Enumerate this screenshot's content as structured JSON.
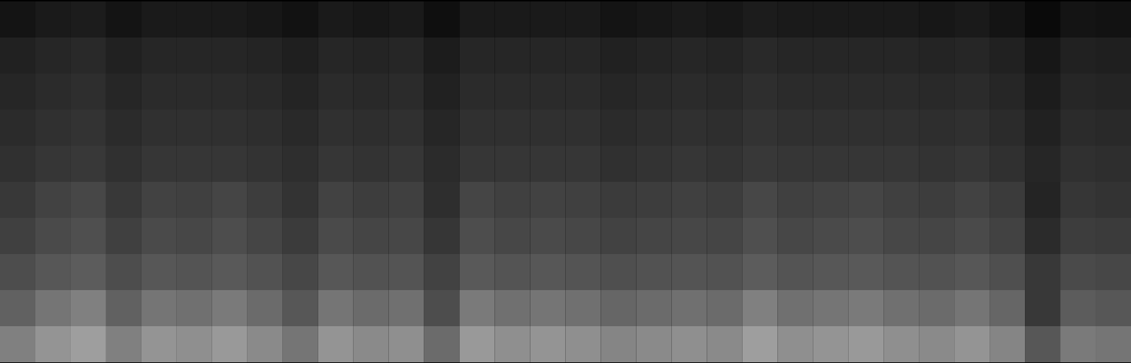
{
  "chart_data": {
    "type": "heatmap",
    "tick_labels": false,
    "clim": [
      0,
      100
    ],
    "cells": [
      [
        8,
        10,
        11,
        8,
        10,
        10,
        10,
        9,
        7,
        10,
        9,
        10,
        6,
        10,
        10,
        10,
        10,
        8,
        9,
        10,
        9,
        11,
        10,
        10,
        10,
        10,
        9,
        10,
        8,
        4,
        8,
        7
      ],
      [
        13,
        15,
        16,
        13,
        15,
        15,
        15,
        14,
        12,
        15,
        14,
        15,
        11,
        15,
        15,
        15,
        15,
        13,
        14,
        15,
        14,
        16,
        15,
        15,
        15,
        15,
        14,
        15,
        13,
        9,
        13,
        12
      ],
      [
        15,
        17,
        18,
        15,
        17,
        17,
        17,
        16,
        14,
        17,
        16,
        17,
        13,
        17,
        17,
        17,
        17,
        15,
        16,
        17,
        16,
        18,
        17,
        17,
        17,
        17,
        16,
        17,
        15,
        11,
        15,
        14
      ],
      [
        17,
        19,
        20,
        17,
        19,
        19,
        19,
        18,
        16,
        19,
        18,
        19,
        15,
        19,
        19,
        19,
        19,
        17,
        18,
        19,
        18,
        20,
        19,
        19,
        19,
        19,
        18,
        19,
        17,
        13,
        17,
        16
      ],
      [
        19,
        21,
        22,
        19,
        21,
        21,
        21,
        20,
        18,
        21,
        20,
        21,
        17,
        21,
        21,
        21,
        21,
        19,
        20,
        21,
        20,
        22,
        21,
        21,
        21,
        21,
        20,
        21,
        19,
        15,
        19,
        18
      ],
      [
        22,
        26,
        28,
        22,
        26,
        25,
        27,
        24,
        20,
        26,
        24,
        25,
        18,
        27,
        25,
        26,
        25,
        23,
        24,
        25,
        24,
        28,
        25,
        26,
        27,
        25,
        24,
        26,
        23,
        14,
        21,
        20
      ],
      [
        25,
        29,
        31,
        25,
        29,
        28,
        30,
        27,
        23,
        29,
        27,
        28,
        21,
        30,
        28,
        29,
        28,
        26,
        27,
        28,
        27,
        31,
        28,
        29,
        30,
        28,
        27,
        29,
        26,
        17,
        24,
        23
      ],
      [
        30,
        34,
        36,
        30,
        34,
        33,
        35,
        32,
        28,
        34,
        32,
        33,
        26,
        35,
        33,
        34,
        33,
        31,
        32,
        33,
        32,
        36,
        33,
        34,
        35,
        33,
        32,
        34,
        31,
        22,
        29,
        28
      ],
      [
        38,
        46,
        50,
        38,
        46,
        44,
        48,
        42,
        34,
        46,
        42,
        44,
        30,
        48,
        44,
        46,
        44,
        40,
        42,
        44,
        42,
        50,
        44,
        46,
        48,
        44,
        42,
        46,
        40,
        22,
        36,
        34
      ],
      [
        50,
        58,
        62,
        50,
        58,
        56,
        60,
        54,
        46,
        58,
        54,
        56,
        42,
        60,
        56,
        58,
        56,
        52,
        54,
        56,
        54,
        62,
        56,
        58,
        60,
        56,
        54,
        58,
        52,
        34,
        48,
        46
      ]
    ]
  }
}
